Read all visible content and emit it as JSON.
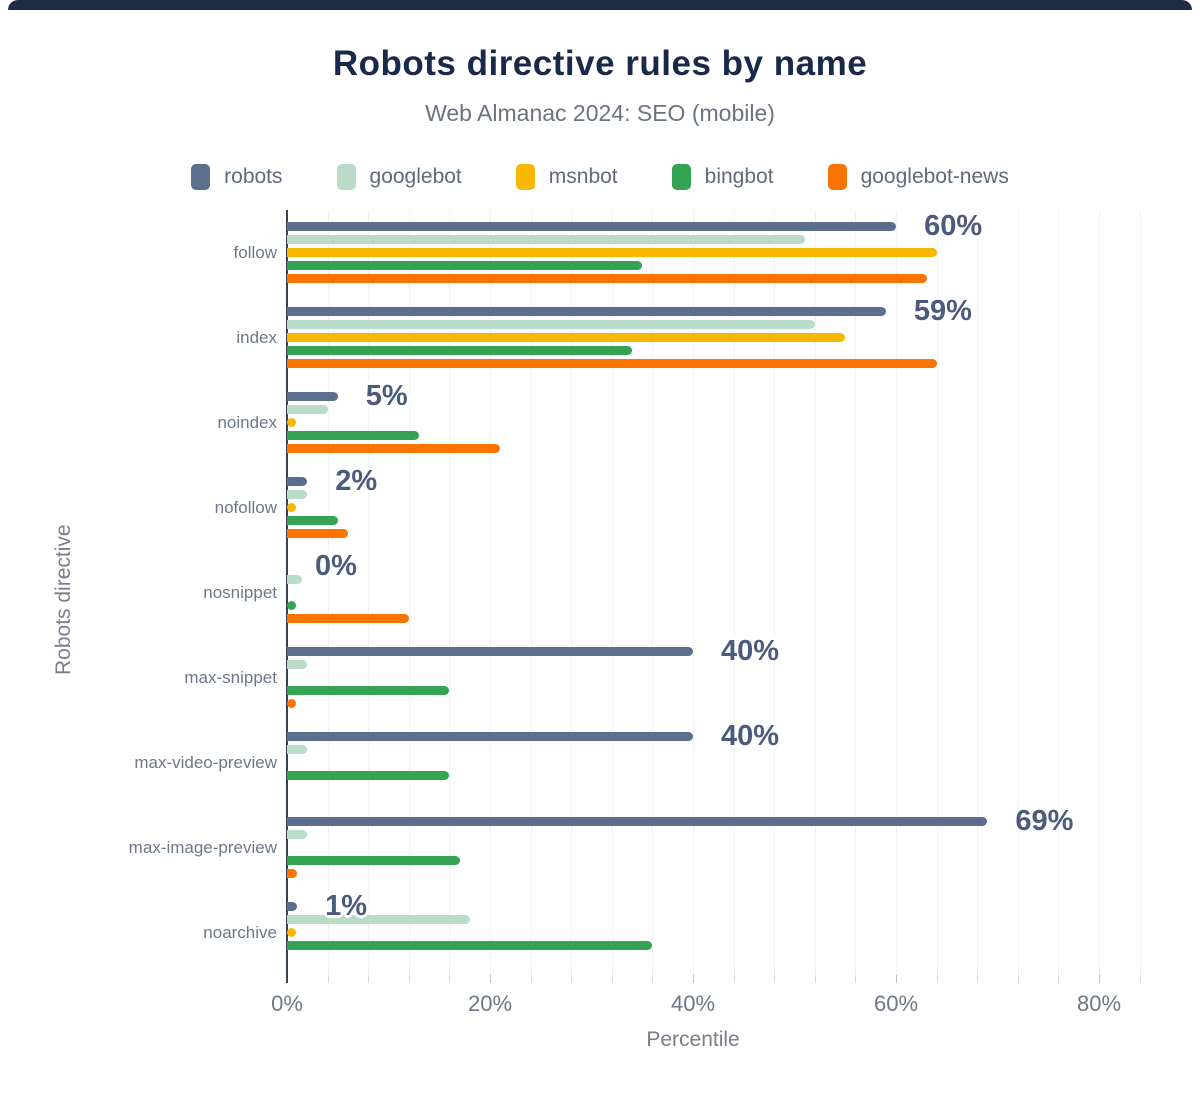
{
  "page": {
    "top_strip_color": "#1e2b45"
  },
  "header": {
    "title": "Robots directive rules by name",
    "subtitle": "Web Almanac 2024: SEO (mobile)"
  },
  "colors": {
    "title": "#18294a",
    "subtitle": "#6b7280",
    "axis_text": "#6d7887",
    "axis_title_text": "#787f8a",
    "value_label": "#4a5b7e",
    "grid_line": "#eef0f4",
    "axis_line": "#39424f"
  },
  "chart_data": {
    "type": "bar",
    "orientation": "horizontal",
    "title": "Robots directive rules by name",
    "subtitle": "Web Almanac 2024: SEO (mobile)",
    "xlabel": "Percentile",
    "ylabel": "Robots directive",
    "legend_position": "top",
    "grid": "vertical minor gridlines every 4%",
    "xlim": [
      0,
      86
    ],
    "minor_grid_step_pct": 4,
    "x_ticks": [
      {
        "value": 0,
        "label": "0%"
      },
      {
        "value": 20,
        "label": "20%"
      },
      {
        "value": 40,
        "label": "40%"
      },
      {
        "value": 60,
        "label": "60%"
      },
      {
        "value": 80,
        "label": "80%"
      }
    ],
    "categories": [
      "follow",
      "index",
      "noindex",
      "nofollow",
      "nosnippet",
      "max-snippet",
      "max-video-preview",
      "max-image-preview",
      "noarchive"
    ],
    "series": [
      {
        "name": "robots",
        "color": "#5b6e8c",
        "values": [
          60,
          59,
          5,
          2,
          0,
          40,
          40,
          69,
          1
        ]
      },
      {
        "name": "googlebot",
        "color": "#b9dcc8",
        "values": [
          51,
          52,
          4,
          2,
          1.5,
          2,
          2,
          2,
          18
        ]
      },
      {
        "name": "msnbot",
        "color": "#f9b700",
        "values": [
          64,
          55,
          0.5,
          0.5,
          0,
          0,
          0,
          0,
          0.5
        ]
      },
      {
        "name": "bingbot",
        "color": "#34a353",
        "values": [
          35,
          34,
          13,
          5,
          0.7,
          16,
          16,
          17,
          36
        ]
      },
      {
        "name": "googlebot-news",
        "color": "#fb7300",
        "values": [
          63,
          64,
          21,
          6,
          12,
          0.4,
          0,
          1,
          0
        ]
      }
    ],
    "value_labels": {
      "series": "robots",
      "labels": [
        "60%",
        "59%",
        "5%",
        "2%",
        "0%",
        "40%",
        "40%",
        "69%",
        "1%"
      ]
    }
  }
}
